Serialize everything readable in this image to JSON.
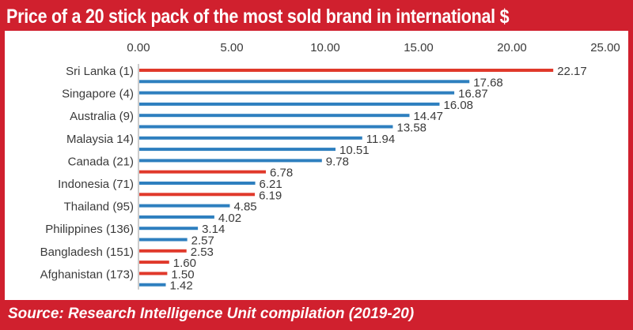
{
  "chart_data": {
    "type": "bar",
    "orientation": "horizontal",
    "title": "Price of a 20 stick pack of the most sold brand in international $",
    "source": "Source: Research Intelligence Unit compilation (2019-20)",
    "xlim": [
      0,
      25
    ],
    "x_ticks": [
      "0.00",
      "5.00",
      "10.00",
      "15.00",
      "20.00",
      "25.00"
    ],
    "x_axis_position": "top",
    "grid": false,
    "colors": {
      "highlight": "#e0392b",
      "default": "#2e7fbf",
      "frame": "#d0202e"
    },
    "bars": [
      {
        "label": "Sri Lanka (1)",
        "value": 22.17,
        "value_label": "22.17",
        "color": "highlight"
      },
      {
        "label": "",
        "value": 17.68,
        "value_label": "17.68",
        "color": "default"
      },
      {
        "label": "Singapore (4)",
        "value": 16.87,
        "value_label": "16.87",
        "color": "default"
      },
      {
        "label": "",
        "value": 16.08,
        "value_label": "16.08",
        "color": "default"
      },
      {
        "label": "Australia (9)",
        "value": 14.47,
        "value_label": "14.47",
        "color": "default"
      },
      {
        "label": "",
        "value": 13.58,
        "value_label": "13.58",
        "color": "default"
      },
      {
        "label": "Malaysia 14)",
        "value": 11.94,
        "value_label": "11.94",
        "color": "default"
      },
      {
        "label": "",
        "value": 10.51,
        "value_label": "10.51",
        "color": "default"
      },
      {
        "label": "Canada (21)",
        "value": 9.78,
        "value_label": "9.78",
        "color": "default"
      },
      {
        "label": "",
        "value": 6.78,
        "value_label": "6.78",
        "color": "highlight"
      },
      {
        "label": "Indonesia (71)",
        "value": 6.21,
        "value_label": "6.21",
        "color": "default"
      },
      {
        "label": "",
        "value": 6.19,
        "value_label": "6.19",
        "color": "highlight"
      },
      {
        "label": "Thailand (95)",
        "value": 4.85,
        "value_label": "4.85",
        "color": "default"
      },
      {
        "label": "",
        "value": 4.02,
        "value_label": "4.02",
        "color": "default"
      },
      {
        "label": "Philippines (136)",
        "value": 3.14,
        "value_label": "3.14",
        "color": "default"
      },
      {
        "label": "",
        "value": 2.57,
        "value_label": "2.57",
        "color": "default"
      },
      {
        "label": "Bangladesh (151)",
        "value": 2.53,
        "value_label": "2.53",
        "color": "highlight"
      },
      {
        "label": "",
        "value": 1.6,
        "value_label": "1.60",
        "color": "highlight"
      },
      {
        "label": "Afghanistan (173)",
        "value": 1.5,
        "value_label": "1.50",
        "color": "highlight"
      },
      {
        "label": "",
        "value": 1.42,
        "value_label": "1.42",
        "color": "default"
      }
    ]
  }
}
